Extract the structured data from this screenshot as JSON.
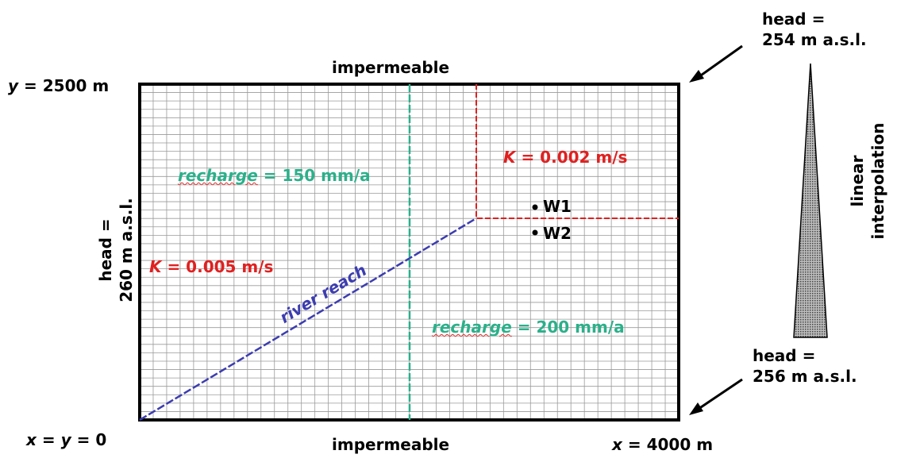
{
  "top_boundary": "impermeable",
  "bottom_boundary": "impermeable",
  "y_max_label": {
    "var": "y",
    "rest": " = 2500 m"
  },
  "origin_label": {
    "x": "x",
    "eq1": " = ",
    "y": "y",
    "eq2": " = 0"
  },
  "x_max_label": {
    "var": "x",
    "rest": " = 4000 m"
  },
  "left_head": {
    "line1": "head =",
    "line2": "260 m a.s.l."
  },
  "right_top_head": {
    "line1": "head =",
    "line2": "254 m a.s.l."
  },
  "right_bottom_head": {
    "line1": "head =",
    "line2": "256 m a.s.l."
  },
  "interpolation": {
    "line1": "linear",
    "line2": "interpolation"
  },
  "recharge_left": {
    "word": "recharge",
    "rest": " = 150 mm/a"
  },
  "recharge_right": {
    "word": "recharge",
    "rest": " = 200 mm/a"
  },
  "k_left": {
    "var": "K",
    "rest": " = 0.005 m/s"
  },
  "k_right": {
    "var": "K",
    "rest": " = 0.002 m/s"
  },
  "river_label": "river reach",
  "wells": [
    {
      "label": "W1"
    },
    {
      "label": "W2"
    }
  ],
  "colors": {
    "k_zone": "#e02020",
    "recharge": "#2bb08a",
    "river": "#3c3cb0",
    "grid": "#9a9a9a"
  }
}
